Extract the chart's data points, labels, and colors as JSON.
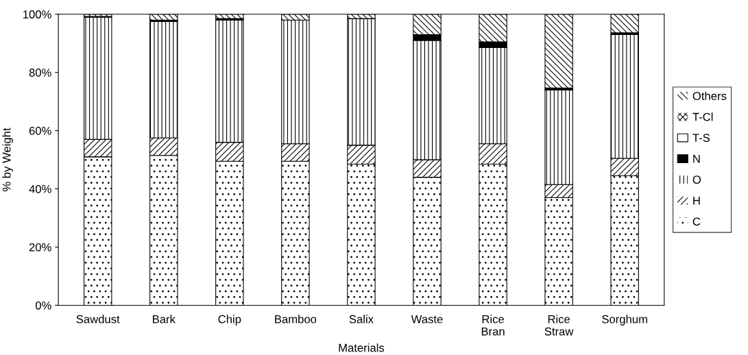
{
  "chart_data": {
    "type": "bar",
    "stacked": true,
    "xlabel": "Materials",
    "ylabel": "% by Weight",
    "categories": [
      "Sawdust",
      "Bark",
      "Chip",
      "Bamboo",
      "Salix",
      "Waste",
      "Rice\nBran",
      "Rice\nStraw",
      "Sorghum"
    ],
    "series": [
      {
        "name": "C",
        "color": "#ffffff",
        "values": [
          51,
          51.5,
          49.5,
          49.5,
          48.5,
          44,
          48.5,
          37,
          44.5
        ]
      },
      {
        "name": "H",
        "color": "#ffffff",
        "values": [
          6,
          6,
          6.5,
          6,
          6.5,
          6,
          7,
          4.5,
          6
        ]
      },
      {
        "name": "O",
        "color": "#ffffff",
        "values": [
          42,
          40,
          42,
          42.5,
          43.5,
          41,
          33,
          32.5,
          42.5
        ]
      },
      {
        "name": "N",
        "color": "#000000",
        "values": [
          0.2,
          0.5,
          0.5,
          0,
          0,
          2,
          2,
          0.7,
          0.6
        ]
      },
      {
        "name": "T-S",
        "color": "#ffffff",
        "values": [
          0,
          0,
          0,
          0,
          0,
          0,
          0,
          0,
          0
        ]
      },
      {
        "name": "T-Cl",
        "color": "#ffffff",
        "values": [
          0,
          0,
          0,
          0,
          0,
          0,
          0,
          0,
          0
        ]
      },
      {
        "name": "Others",
        "color": "#ffffff",
        "values": [
          0.8,
          2,
          1.5,
          2,
          1.5,
          7,
          9.5,
          25.3,
          6.4
        ]
      }
    ],
    "ylim": [
      0,
      100
    ],
    "yticks": [
      {
        "value": 0,
        "label": "0%"
      },
      {
        "value": 20,
        "label": "20%"
      },
      {
        "value": 40,
        "label": "40%"
      },
      {
        "value": 60,
        "label": "60%"
      },
      {
        "value": 80,
        "label": "80%"
      },
      {
        "value": 100,
        "label": "100%"
      }
    ],
    "grid": false,
    "legend": "right"
  }
}
